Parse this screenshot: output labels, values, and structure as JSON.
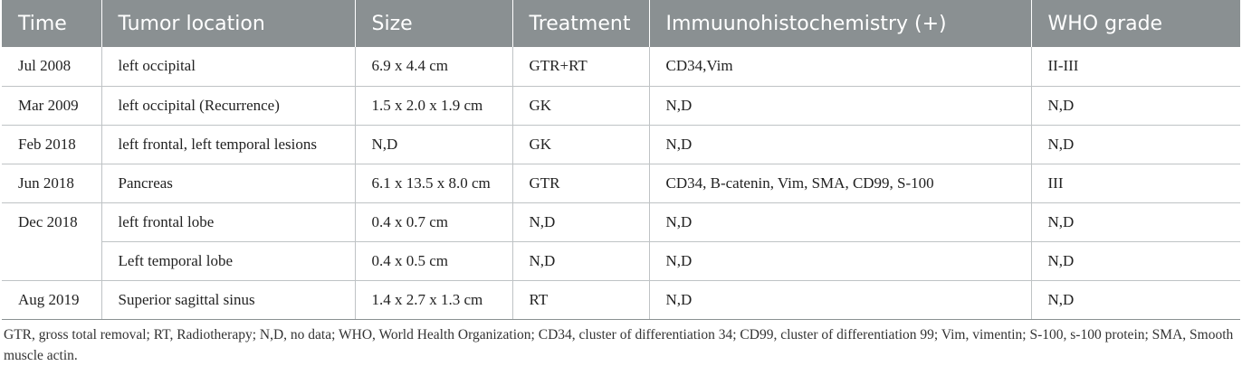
{
  "table": {
    "headers": [
      "Time",
      "Tumor location",
      "Size",
      "Treatment",
      "Immuunohistochemistry (+)",
      "WHO grade"
    ],
    "rows": [
      {
        "time": "Jul 2008",
        "location": "left occipital",
        "size": "6.9 x 4.4 cm",
        "treatment": "GTR+RT",
        "ihc": "CD34,Vim",
        "grade": "II-III"
      },
      {
        "time": "Mar 2009",
        "location": "left occipital (Recurrence)",
        "size": "1.5 x 2.0 x 1.9 cm",
        "treatment": "GK",
        "ihc": "N,D",
        "grade": "N,D"
      },
      {
        "time": "Feb 2018",
        "location": "left frontal, left temporal lesions",
        "size": "N,D",
        "treatment": "GK",
        "ihc": "N,D",
        "grade": "N,D"
      },
      {
        "time": "Jun 2018",
        "location": "Pancreas",
        "size": "6.1 x 13.5 x 8.0 cm",
        "treatment": "GTR",
        "ihc": "CD34, B-catenin, Vim, SMA, CD99, S-100",
        "grade": "III"
      },
      {
        "time": "Dec 2018",
        "location": "left frontal lobe",
        "size": "0.4 x 0.7 cm",
        "treatment": "N,D",
        "ihc": "N,D",
        "grade": "N,D"
      },
      {
        "time": "",
        "location": "Left temporal lobe",
        "size": "0.4 x 0.5 cm",
        "treatment": "N,D",
        "ihc": "N,D",
        "grade": "N,D"
      },
      {
        "time": "Aug 2019",
        "location": "Superior sagittal sinus",
        "size": "1.4 x 2.7 x 1.3 cm",
        "treatment": "RT",
        "ihc": "N,D",
        "grade": "N,D"
      }
    ]
  },
  "footnote": "GTR, gross total removal; RT, Radiotherapy; N,D, no data; WHO, World Health Organization; CD34, cluster of differentiation 34; CD99, cluster of differentiation 99; Vim, vimentin; S-100, s-100 protein; SMA, Smooth muscle actin."
}
